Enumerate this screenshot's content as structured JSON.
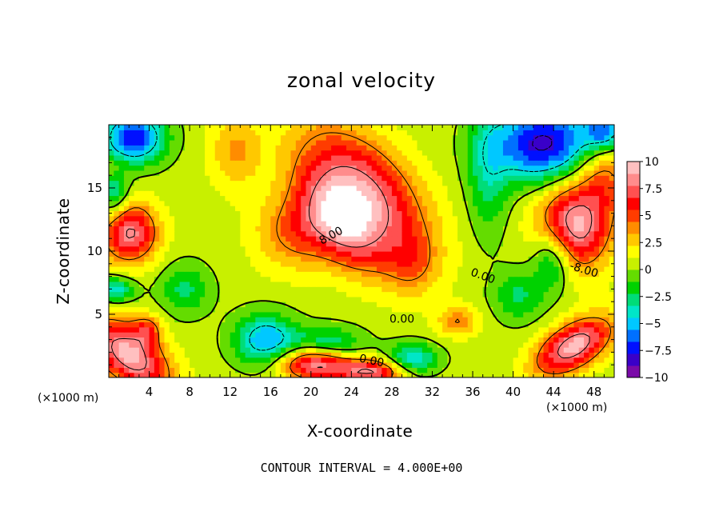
{
  "chart_data": {
    "type": "heatmap",
    "title": "zonal velocity",
    "xlabel": "X-coordinate",
    "ylabel": "Z-coordinate",
    "x_unit_label": "(×1000 m)",
    "x_unit_label_right": "(×1000 m)",
    "footer": "CONTOUR INTERVAL = 4.000E+00",
    "xlim": [
      0,
      50
    ],
    "ylim": [
      0,
      20
    ],
    "x_ticks": [
      4,
      8,
      12,
      16,
      20,
      24,
      28,
      32,
      36,
      40,
      44,
      48
    ],
    "y_ticks": [
      5,
      10,
      15
    ],
    "colorbar": {
      "min": -10,
      "max": 10,
      "ticks": [
        "10",
        "7.5",
        "5",
        "2.5",
        "0",
        "−2.5",
        "−5",
        "−7.5",
        "−10"
      ],
      "tick_values": [
        10,
        7.5,
        5,
        2.5,
        0,
        -2.5,
        -5,
        -7.5,
        -10
      ],
      "colors": [
        "#7a0aa8",
        "#3a00c8",
        "#0010ff",
        "#0070ff",
        "#00c8ff",
        "#00e6c8",
        "#00dc78",
        "#00d200",
        "#64dc00",
        "#c8f000",
        "#ffff00",
        "#ffc800",
        "#ff8c00",
        "#ff3c00",
        "#ff0000",
        "#ff5050",
        "#ff8c8c",
        "#ffc0c0"
      ],
      "above_max_color": "#ffffff"
    },
    "contour_interval": 4,
    "contour_labels": [
      "8.00",
      "0.00",
      "0.00",
      "0.00",
      "-8.00"
    ],
    "field_blobs": [
      {
        "x": 25.0,
        "z": 14.5,
        "value": 8.5,
        "sx": 7.0,
        "sz": 4.0,
        "tilt": -0.6
      },
      {
        "x": 23.0,
        "z": 12.0,
        "value": 5.0,
        "sx": 4.5,
        "sz": 2.6,
        "tilt": -0.7
      },
      {
        "x": 18.5,
        "z": 11.5,
        "value": 4.0,
        "sx": 4.0,
        "sz": 3.0,
        "tilt": 0.0
      },
      {
        "x": 12.5,
        "z": 18.0,
        "value": 3.0,
        "sx": 2.5,
        "sz": 3.0,
        "tilt": 0.0
      },
      {
        "x": 46.0,
        "z": 12.0,
        "value": 9.0,
        "sx": 3.5,
        "sz": 3.5,
        "tilt": 0.3
      },
      {
        "x": 49.0,
        "z": 16.0,
        "value": 4.0,
        "sx": 2.5,
        "sz": 3.0,
        "tilt": 0.0
      },
      {
        "x": 2.0,
        "z": 11.5,
        "value": 8.0,
        "sx": 2.8,
        "sz": 2.4,
        "tilt": 0.0
      },
      {
        "x": 0.5,
        "z": 16.5,
        "value": 3.0,
        "sx": 1.5,
        "sz": 1.5,
        "tilt": 0.0
      },
      {
        "x": 2.0,
        "z": 1.8,
        "value": 9.0,
        "sx": 4.5,
        "sz": 2.2,
        "tilt": -0.5
      },
      {
        "x": 3.8,
        "z": 3.8,
        "value": 4.0,
        "sx": 1.5,
        "sz": 1.2,
        "tilt": 0.0
      },
      {
        "x": 20.5,
        "z": 1.2,
        "value": 9.0,
        "sx": 3.5,
        "sz": 1.4,
        "tilt": 0.0
      },
      {
        "x": 26.0,
        "z": 0.5,
        "value": 7.5,
        "sx": 3.2,
        "sz": 1.0,
        "tilt": 0.0
      },
      {
        "x": 46.0,
        "z": 2.5,
        "value": 9.0,
        "sx": 4.0,
        "sz": 1.8,
        "tilt": 0.4
      },
      {
        "x": 34.5,
        "z": 4.5,
        "value": 3.5,
        "sx": 2.0,
        "sz": 1.2,
        "tilt": 0.0
      },
      {
        "x": 30.0,
        "z": 9.0,
        "value": 2.5,
        "sx": 2.5,
        "sz": 2.5,
        "tilt": 0.0
      },
      {
        "x": 2.5,
        "z": 19.0,
        "value": -8.0,
        "sx": 3.0,
        "sz": 2.0,
        "tilt": 0.0
      },
      {
        "x": 0.5,
        "z": 15.0,
        "value": -5.0,
        "sx": 1.5,
        "sz": 2.5,
        "tilt": 0.0
      },
      {
        "x": 43.0,
        "z": 18.5,
        "value": -9.0,
        "sx": 5.0,
        "sz": 3.0,
        "tilt": 0.0
      },
      {
        "x": 49.0,
        "z": 19.5,
        "value": -6.0,
        "sx": 2.0,
        "sz": 1.5,
        "tilt": 0.0
      },
      {
        "x": 15.5,
        "z": 3.0,
        "value": -6.0,
        "sx": 3.0,
        "sz": 2.0,
        "tilt": 0.0
      },
      {
        "x": 21.5,
        "z": 2.5,
        "value": -5.0,
        "sx": 3.5,
        "sz": 1.4,
        "tilt": 0.0
      },
      {
        "x": 30.0,
        "z": 1.5,
        "value": -5.0,
        "sx": 2.5,
        "sz": 1.2,
        "tilt": 0.0
      },
      {
        "x": 40.5,
        "z": 6.5,
        "value": -3.0,
        "sx": 2.5,
        "sz": 2.0,
        "tilt": 0.0
      },
      {
        "x": 37.5,
        "z": 16.0,
        "value": -3.0,
        "sx": 2.0,
        "sz": 5.0,
        "tilt": 0.0
      },
      {
        "x": 7.5,
        "z": 7.0,
        "value": -3.0,
        "sx": 2.5,
        "sz": 2.0,
        "tilt": 0.0
      },
      {
        "x": 44.0,
        "z": 9.5,
        "value": -5.0,
        "sx": 2.0,
        "sz": 2.5,
        "tilt": 0.0
      },
      {
        "x": 0.5,
        "z": 7.0,
        "value": -5.0,
        "sx": 2.0,
        "sz": 1.0,
        "tilt": 0.0
      }
    ],
    "field_background": 0.5
  }
}
